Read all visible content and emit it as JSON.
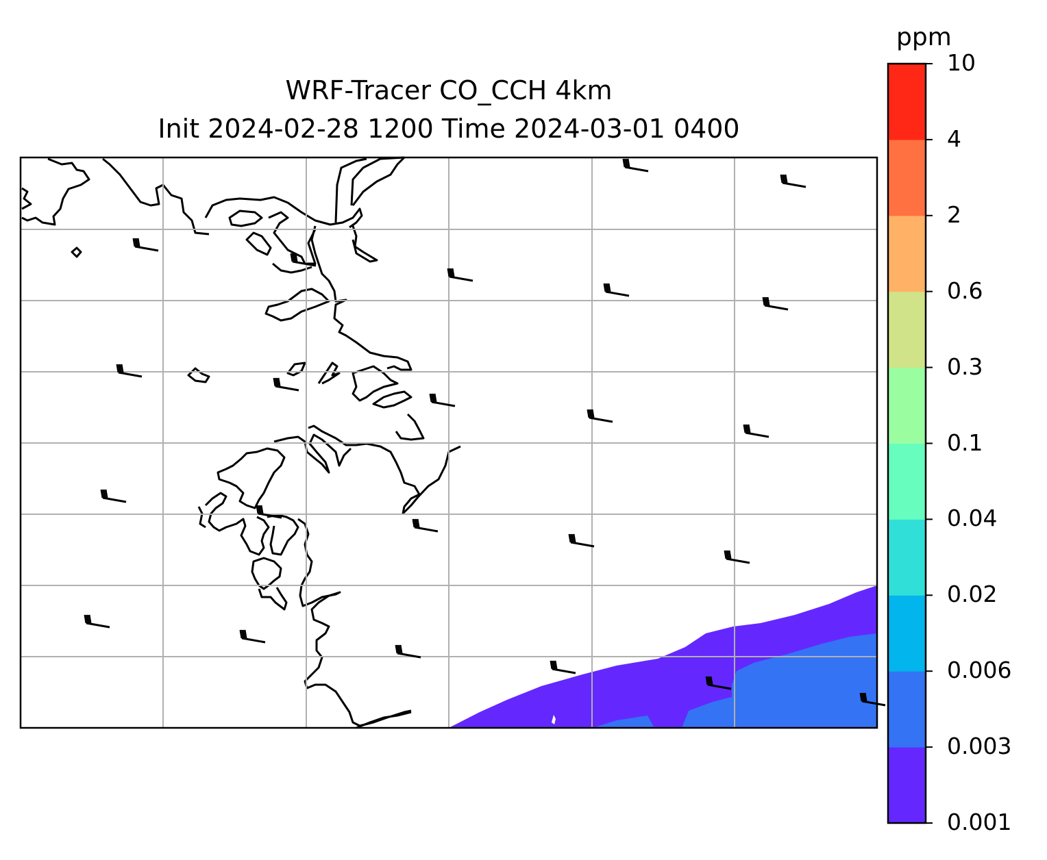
{
  "title": {
    "line1": "WRF-Tracer CO_CCH 4km",
    "line2": "Init 2024-02-28 1200 Time 2024-03-01 0400"
  },
  "colorbar": {
    "unit": "ppm",
    "levels": [
      "0.001",
      "0.003",
      "0.006",
      "0.02",
      "0.04",
      "0.1",
      "0.3",
      "0.6",
      "2",
      "4",
      "10"
    ],
    "colors": [
      "#6428ff",
      "#3473f4",
      "#02b5ec",
      "#30e0d8",
      "#66fdbe",
      "#9afea1",
      "#d0e388",
      "#ffb266",
      "#ff7140",
      "#ff2817"
    ]
  },
  "map": {
    "gridlines": "on",
    "grid_color": "#b0b0b0",
    "coastline_color": "#000000",
    "wind_barbs": "yes"
  }
}
